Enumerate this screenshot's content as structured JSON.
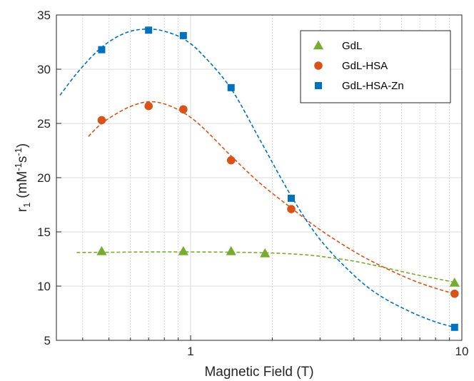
{
  "chart_data": {
    "type": "scatter",
    "title": "",
    "xlabel": "Magnetic Field (T)",
    "ylabel_main": "r",
    "ylabel_sub": "1",
    "ylabel_unit_open": "(mM",
    "ylabel_sup1": "-1",
    "ylabel_mid": "s",
    "ylabel_sup2": "-1",
    "ylabel_unit_close": ")",
    "xscale": "log",
    "xlim": [
      0.32,
      10
    ],
    "ylim": [
      5,
      35
    ],
    "x_ticks": [
      {
        "value": 1,
        "label": "1"
      },
      {
        "value": 10,
        "label": "10"
      }
    ],
    "y_ticks": [
      {
        "value": 5,
        "label": "5"
      },
      {
        "value": 10,
        "label": "10"
      },
      {
        "value": 15,
        "label": "15"
      },
      {
        "value": 20,
        "label": "20"
      },
      {
        "value": 25,
        "label": "25"
      },
      {
        "value": 30,
        "label": "30"
      },
      {
        "value": 35,
        "label": "35"
      }
    ],
    "grid": true,
    "legend_position": "top-right",
    "series": [
      {
        "name": "GdL",
        "marker": "triangle",
        "color": "#77ac30",
        "points": [
          {
            "x": 0.47,
            "y": 13.2
          },
          {
            "x": 0.94,
            "y": 13.2
          },
          {
            "x": 1.41,
            "y": 13.2
          },
          {
            "x": 1.88,
            "y": 13.0
          },
          {
            "x": 9.4,
            "y": 10.3
          }
        ],
        "fit": [
          {
            "x": 0.38,
            "y": 13.1
          },
          {
            "x": 0.5,
            "y": 13.12
          },
          {
            "x": 0.7,
            "y": 13.15
          },
          {
            "x": 1.0,
            "y": 13.15
          },
          {
            "x": 1.5,
            "y": 13.12
          },
          {
            "x": 2.0,
            "y": 13.05
          },
          {
            "x": 2.5,
            "y": 12.93
          },
          {
            "x": 3.0,
            "y": 12.75
          },
          {
            "x": 4.0,
            "y": 12.3
          },
          {
            "x": 5.0,
            "y": 11.8
          },
          {
            "x": 6.0,
            "y": 11.35
          },
          {
            "x": 7.0,
            "y": 10.98
          },
          {
            "x": 8.0,
            "y": 10.7
          },
          {
            "x": 9.4,
            "y": 10.35
          }
        ]
      },
      {
        "name": "GdL-HSA",
        "marker": "circle",
        "color": "#d95319",
        "points": [
          {
            "x": 0.47,
            "y": 25.3
          },
          {
            "x": 0.7,
            "y": 26.6
          },
          {
            "x": 0.94,
            "y": 26.3
          },
          {
            "x": 1.41,
            "y": 21.6
          },
          {
            "x": 2.35,
            "y": 17.1
          },
          {
            "x": 9.4,
            "y": 9.3
          }
        ],
        "fit": [
          {
            "x": 0.42,
            "y": 23.8
          },
          {
            "x": 0.47,
            "y": 25.0
          },
          {
            "x": 0.55,
            "y": 26.1
          },
          {
            "x": 0.62,
            "y": 26.7
          },
          {
            "x": 0.7,
            "y": 27.0
          },
          {
            "x": 0.8,
            "y": 26.8
          },
          {
            "x": 0.94,
            "y": 26.0
          },
          {
            "x": 1.1,
            "y": 24.7
          },
          {
            "x": 1.41,
            "y": 22.0
          },
          {
            "x": 1.8,
            "y": 19.5
          },
          {
            "x": 2.35,
            "y": 17.2
          },
          {
            "x": 3.0,
            "y": 15.2
          },
          {
            "x": 4.0,
            "y": 13.2
          },
          {
            "x": 5.0,
            "y": 11.9
          },
          {
            "x": 6.5,
            "y": 10.6
          },
          {
            "x": 8.0,
            "y": 9.8
          },
          {
            "x": 9.4,
            "y": 9.3
          }
        ]
      },
      {
        "name": "GdL-HSA-Zn",
        "marker": "square",
        "color": "#0072bd",
        "points": [
          {
            "x": 0.47,
            "y": 31.8
          },
          {
            "x": 0.7,
            "y": 33.6
          },
          {
            "x": 0.94,
            "y": 33.1
          },
          {
            "x": 1.41,
            "y": 28.3
          },
          {
            "x": 2.35,
            "y": 18.1
          },
          {
            "x": 9.4,
            "y": 6.2
          }
        ],
        "fit": [
          {
            "x": 0.33,
            "y": 27.6
          },
          {
            "x": 0.38,
            "y": 29.6
          },
          {
            "x": 0.45,
            "y": 31.6
          },
          {
            "x": 0.52,
            "y": 32.8
          },
          {
            "x": 0.6,
            "y": 33.5
          },
          {
            "x": 0.7,
            "y": 33.7
          },
          {
            "x": 0.8,
            "y": 33.5
          },
          {
            "x": 0.94,
            "y": 32.8
          },
          {
            "x": 1.1,
            "y": 31.4
          },
          {
            "x": 1.41,
            "y": 28.2
          },
          {
            "x": 1.8,
            "y": 23.5
          },
          {
            "x": 2.35,
            "y": 18.3
          },
          {
            "x": 3.0,
            "y": 14.3
          },
          {
            "x": 4.0,
            "y": 11.0
          },
          {
            "x": 5.0,
            "y": 9.1
          },
          {
            "x": 6.5,
            "y": 7.6
          },
          {
            "x": 8.0,
            "y": 6.7
          },
          {
            "x": 9.4,
            "y": 6.2
          }
        ]
      }
    ]
  }
}
